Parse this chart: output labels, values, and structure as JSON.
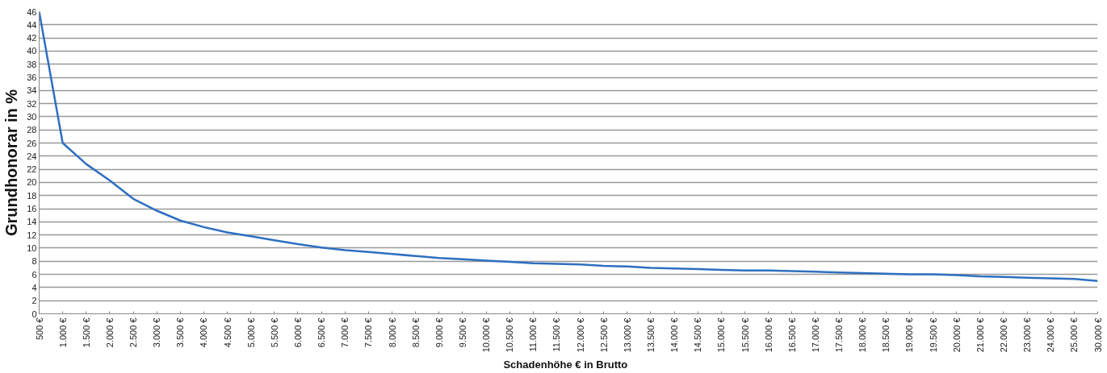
{
  "chart_data": {
    "type": "line",
    "xlabel": "Schadenhöhe  €  in Brutto",
    "ylabel": "Grundhonorar in %",
    "categories": [
      "500 €",
      "1.000 €",
      "1.500 €",
      "2.000 €",
      "2.500 €",
      "3.000 €",
      "3.500 €",
      "4.000 €",
      "4.500 €",
      "5.000 €",
      "5.500 €",
      "6.000 €",
      "6.500 €",
      "7.000 €",
      "7.500 €",
      "8.000 €",
      "8.500 €",
      "9.000 €",
      "9.500 €",
      "10.000 €",
      "10.500 €",
      "11.000 €",
      "11.500 €",
      "12.000 €",
      "12.500 €",
      "13.000 €",
      "13.500 €",
      "14.000 €",
      "14.500 €",
      "15.000 €",
      "15.500 €",
      "16.000 €",
      "16.500 €",
      "17.000 €",
      "17.500 €",
      "18.000 €",
      "18.500 €",
      "19.000 €",
      "19.500 €",
      "20.000 €",
      "21.000 €",
      "22.000 €",
      "23.000 €",
      "24.000 €",
      "25.000 €",
      "30.000 €"
    ],
    "series": [
      {
        "color": "#2e6fc0",
        "values": [
          46,
          26,
          22.8,
          20.3,
          17.5,
          15.7,
          14.2,
          13.2,
          12.4,
          11.8,
          11.2,
          10.6,
          10.1,
          9.7,
          9.4,
          9.1,
          8.8,
          8.5,
          8.3,
          8.1,
          7.9,
          7.7,
          7.6,
          7.5,
          7.3,
          7.2,
          7.0,
          6.9,
          6.8,
          6.7,
          6.6,
          6.6,
          6.5,
          6.4,
          6.3,
          6.2,
          6.1,
          6.0,
          6.0,
          5.9,
          5.7,
          5.6,
          5.5,
          5.4,
          5.3,
          5.0
        ]
      }
    ],
    "ylim": [
      0,
      46
    ],
    "yticks": [
      0,
      2,
      4,
      6,
      8,
      10,
      12,
      14,
      16,
      18,
      20,
      22,
      24,
      26,
      28,
      30,
      32,
      34,
      36,
      38,
      40,
      42,
      44,
      46
    ],
    "grid": "y",
    "marker": "none",
    "line_style": "solid"
  }
}
